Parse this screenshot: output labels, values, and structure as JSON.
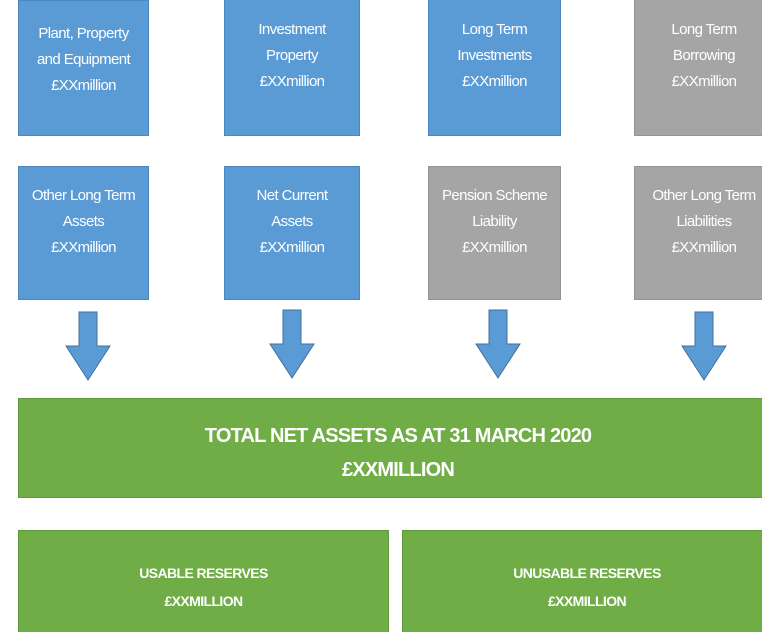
{
  "boxes": [
    {
      "lines": [
        "Plant, Property",
        "and Equipment",
        "£XXmillion"
      ]
    },
    {
      "lines": [
        "Investment",
        "Property",
        "£XXmillion"
      ]
    },
    {
      "lines": [
        "Long Term",
        "Investments",
        "£XXmillion"
      ]
    },
    {
      "lines": [
        "Long Term",
        "Borrowing",
        "£XXmillion"
      ]
    },
    {
      "lines": [
        "Other Long Term",
        "Assets",
        "£XXmillion"
      ]
    },
    {
      "lines": [
        "Net Current",
        "Assets",
        "£XXmillion"
      ]
    },
    {
      "lines": [
        "Pension Scheme",
        "Liability",
        "£XXmillion"
      ]
    },
    {
      "lines": [
        "Other Long Term",
        "Liabilities",
        "£XXmillion"
      ]
    }
  ],
  "total": {
    "lines": [
      "TOTAL NET ASSETS AS AT 31 MARCH 2020",
      "£XXMILLION"
    ]
  },
  "reserves": [
    {
      "lines": [
        "USABLE RESERVES",
        "£XXMILLION"
      ]
    },
    {
      "lines": [
        "UNUSABLE RESERVES",
        "£XXMILLION"
      ]
    }
  ]
}
